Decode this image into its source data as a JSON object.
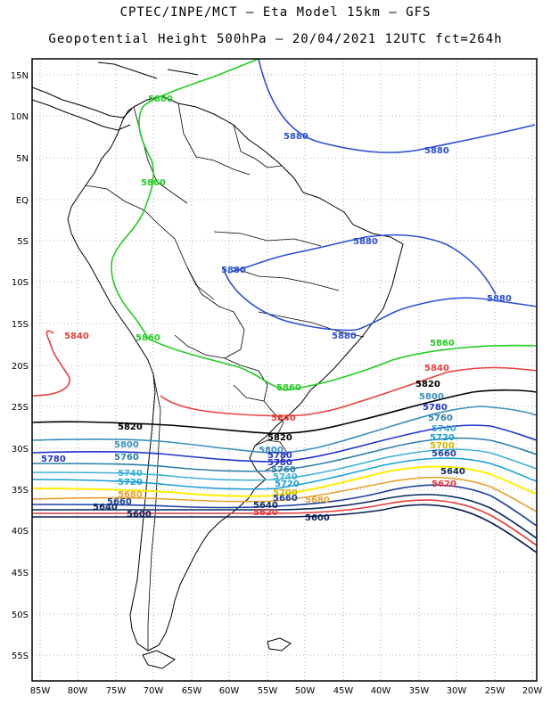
{
  "header": {
    "line1": "CPTEC/INPE/MCT –  Eta Model 15km – GFS",
    "line2": "Geopotential Height 500hPa – 20/04/2021 12UTC fct=264h"
  },
  "axes": {
    "lat_labels": [
      "15N",
      "10N",
      "5N",
      "EQ",
      "5S",
      "10S",
      "15S",
      "20S",
      "25S",
      "30S",
      "35S",
      "40S",
      "45S",
      "50S",
      "55S"
    ],
    "lon_labels": [
      "85W",
      "80W",
      "75W",
      "70W",
      "65W",
      "60W",
      "55W",
      "50W",
      "45W",
      "40W",
      "35W",
      "30W",
      "25W",
      "20W"
    ]
  },
  "colors": {
    "5880": "#2b4fd6",
    "5860": "#22cc22",
    "5840": "#e8413c",
    "5820": "#000000",
    "5800": "#3a8fc0",
    "5780": "#2233cc",
    "5760": "#2a7fa8",
    "5740": "#3fb0d8",
    "5720": "#1a9fd8",
    "5700": "#ffee00",
    "5680": "#e8a030",
    "5660": "#1d3fa0",
    "5640": "#0a2a60",
    "5620": "#e83a3a",
    "5600": "#0a1f55"
  },
  "contour_labels": [
    {
      "text": "5860",
      "level": "5860"
    },
    {
      "text": "5880",
      "level": "5880"
    },
    {
      "text": "5880",
      "level": "5880"
    },
    {
      "text": "5860",
      "level": "5860"
    },
    {
      "text": "5880",
      "level": "5880"
    },
    {
      "text": "5880",
      "level": "5880"
    },
    {
      "text": "5880",
      "level": "5880"
    },
    {
      "text": "5880",
      "level": "5880"
    },
    {
      "text": "5840",
      "level": "5840"
    },
    {
      "text": "5860",
      "level": "5860"
    },
    {
      "text": "5860",
      "level": "5860"
    },
    {
      "text": "5860",
      "level": "5860"
    },
    {
      "text": "5840",
      "level": "5840"
    },
    {
      "text": "5820",
      "level": "5820"
    },
    {
      "text": "5840",
      "level": "5840"
    },
    {
      "text": "5820",
      "level": "5820"
    },
    {
      "text": "5800",
      "level": "5800"
    },
    {
      "text": "5820",
      "level": "5820"
    },
    {
      "text": "5780",
      "level": "5780"
    },
    {
      "text": "5760",
      "level": "5760"
    },
    {
      "text": "5740",
      "level": "5740"
    },
    {
      "text": "5720",
      "level": "5720"
    },
    {
      "text": "5700",
      "level": "5700"
    },
    {
      "text": "5800",
      "level": "5800"
    },
    {
      "text": "5780",
      "level": "5780"
    },
    {
      "text": "5760",
      "level": "5760"
    },
    {
      "text": "5780",
      "level": "5780"
    },
    {
      "text": "5740",
      "level": "5740"
    },
    {
      "text": "5720",
      "level": "5720"
    },
    {
      "text": "5800",
      "level": "5800"
    },
    {
      "text": "5780",
      "level": "5780"
    },
    {
      "text": "5760",
      "level": "5760"
    },
    {
      "text": "5740",
      "level": "5740"
    },
    {
      "text": "5720",
      "level": "5720"
    },
    {
      "text": "5700",
      "level": "5700"
    },
    {
      "text": "5680",
      "level": "5680"
    },
    {
      "text": "5660",
      "level": "5660"
    },
    {
      "text": "5640",
      "level": "5640"
    },
    {
      "text": "5620",
      "level": "5620"
    },
    {
      "text": "5640",
      "level": "5640"
    },
    {
      "text": "5600",
      "level": "5600"
    },
    {
      "text": "5640",
      "level": "5640"
    },
    {
      "text": "5620",
      "level": "5620"
    },
    {
      "text": "5660",
      "level": "5660"
    },
    {
      "text": "5600",
      "level": "5600"
    },
    {
      "text": "5680",
      "level": "5680"
    },
    {
      "text": "5660",
      "level": "5660"
    }
  ]
}
